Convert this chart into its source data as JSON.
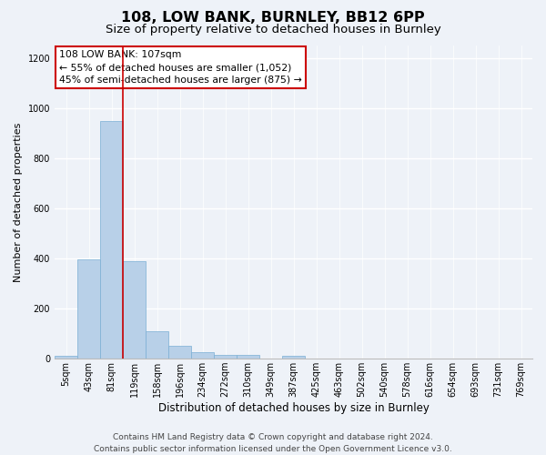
{
  "title": "108, LOW BANK, BURNLEY, BB12 6PP",
  "subtitle": "Size of property relative to detached houses in Burnley",
  "xlabel": "Distribution of detached houses by size in Burnley",
  "ylabel": "Number of detached properties",
  "categories": [
    "5sqm",
    "43sqm",
    "81sqm",
    "119sqm",
    "158sqm",
    "196sqm",
    "234sqm",
    "272sqm",
    "310sqm",
    "349sqm",
    "387sqm",
    "425sqm",
    "463sqm",
    "502sqm",
    "540sqm",
    "578sqm",
    "616sqm",
    "654sqm",
    "693sqm",
    "731sqm",
    "769sqm"
  ],
  "values": [
    13,
    395,
    950,
    390,
    108,
    52,
    25,
    14,
    14,
    0,
    10,
    0,
    0,
    0,
    0,
    0,
    0,
    0,
    0,
    0,
    0
  ],
  "bar_color": "#b8d0e8",
  "bar_edge_color": "#7aafd4",
  "annotation_box_text": "108 LOW BANK: 107sqm\n← 55% of detached houses are smaller (1,052)\n45% of semi-detached houses are larger (875) →",
  "annotation_box_color": "#ffffff",
  "annotation_box_edge_color": "#cc0000",
  "red_line_x": 2.5,
  "ylim": [
    0,
    1250
  ],
  "yticks": [
    0,
    200,
    400,
    600,
    800,
    1000,
    1200
  ],
  "background_color": "#eef2f8",
  "grid_color": "#ffffff",
  "title_fontsize": 11.5,
  "subtitle_fontsize": 9.5,
  "ylabel_fontsize": 8,
  "xlabel_fontsize": 8.5,
  "tick_fontsize": 7,
  "annotation_fontsize": 7.8,
  "footer_fontsize": 6.5,
  "footer_line1": "Contains HM Land Registry data © Crown copyright and database right 2024.",
  "footer_line2": "Contains public sector information licensed under the Open Government Licence v3.0."
}
